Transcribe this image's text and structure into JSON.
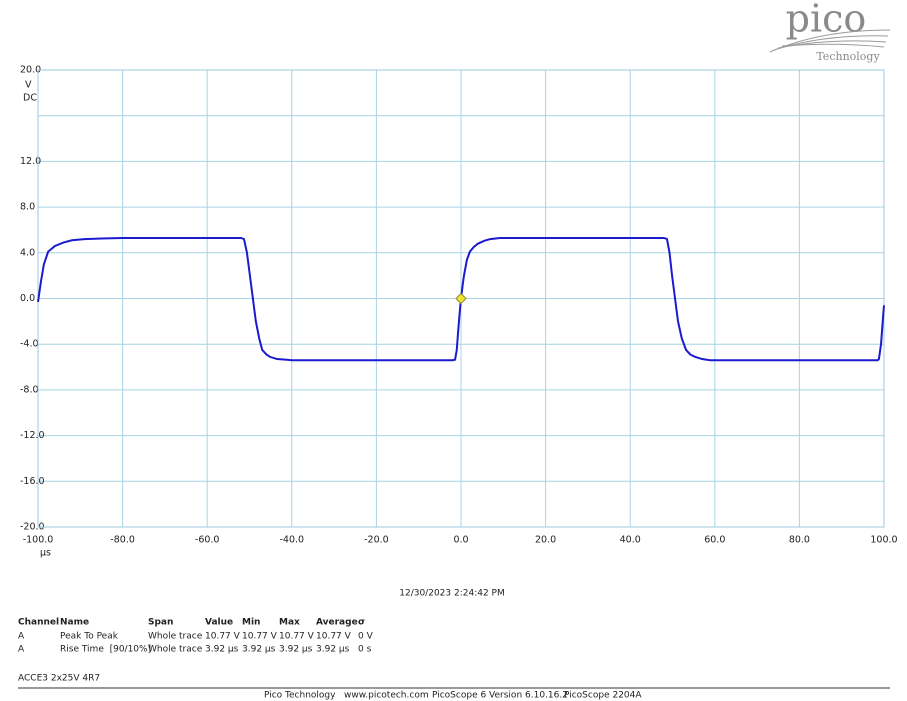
{
  "logo": {
    "name": "pico",
    "tagline": "Technology"
  },
  "chart_data": {
    "type": "line",
    "y_unit": "V",
    "y_coupling": "DC",
    "x_unit": "µs",
    "x": [
      -100,
      -99.3,
      -98.6,
      -97.6,
      -96,
      -94,
      -92,
      -89,
      -85,
      -80,
      -70,
      -60,
      -52,
      -51.3,
      -50.6,
      -49.9,
      -49.2,
      -48.5,
      -47.7,
      -47,
      -46,
      -45.2,
      -43.5,
      -41.5,
      -40,
      -30,
      -20,
      -10,
      -2,
      -1.4,
      -1,
      -0.7,
      -0.3,
      0,
      0.4,
      0.7,
      1.4,
      2.1,
      3,
      4,
      5.5,
      6.9,
      9.2,
      15,
      25,
      35,
      45,
      48,
      48.7,
      49.3,
      49.9,
      50.6,
      51.3,
      52.2,
      53.2,
      54.2,
      55.3,
      57,
      58.9,
      70,
      80,
      90,
      98.5,
      98.8,
      99.3,
      99.7,
      100
    ],
    "series": [
      {
        "name": "A",
        "color": "#1a1ad0",
        "values": [
          -0.3,
          1.5,
          3,
          4.1,
          4.6,
          4.9,
          5.1,
          5.2,
          5.25,
          5.3,
          5.3,
          5.3,
          5.3,
          5.2,
          4,
          2,
          0,
          -2,
          -3.5,
          -4.5,
          -4.9,
          -5.1,
          -5.3,
          -5.35,
          -5.4,
          -5.4,
          -5.4,
          -5.4,
          -5.4,
          -5.35,
          -4.5,
          -3,
          -1.2,
          0,
          1.2,
          2,
          3.4,
          4.1,
          4.5,
          4.8,
          5.05,
          5.2,
          5.3,
          5.3,
          5.3,
          5.3,
          5.3,
          5.3,
          5.2,
          4,
          2,
          0,
          -2,
          -3.5,
          -4.5,
          -4.9,
          -5.1,
          -5.3,
          -5.4,
          -5.4,
          -5.4,
          -5.4,
          -5.4,
          -5.3,
          -4,
          -2,
          -0.6
        ]
      }
    ],
    "trigger": {
      "x": 0,
      "y": 0,
      "color": "#f2e52a"
    },
    "xlim": [
      -100,
      100
    ],
    "xticks": [
      {
        "value": -100,
        "label": "-100.0"
      },
      {
        "value": -80,
        "label": "-80.0"
      },
      {
        "value": -60,
        "label": "-60.0"
      },
      {
        "value": -40,
        "label": "-40.0"
      },
      {
        "value": -20,
        "label": "-20.0"
      },
      {
        "value": 0,
        "label": "0.0"
      },
      {
        "value": 20,
        "label": "20.0"
      },
      {
        "value": 40,
        "label": "40.0"
      },
      {
        "value": 60,
        "label": "60.0"
      },
      {
        "value": 80,
        "label": "80.0"
      },
      {
        "value": 100,
        "label": "100.0"
      }
    ],
    "ylim": [
      -20,
      20
    ],
    "yticks": [
      {
        "value": 20,
        "label": "20.0"
      },
      {
        "value": 16,
        "label": null
      },
      {
        "value": 12,
        "label": "12.0"
      },
      {
        "value": 8,
        "label": "8.0"
      },
      {
        "value": 4,
        "label": "4.0"
      },
      {
        "value": 0,
        "label": "0.0"
      },
      {
        "value": -4,
        "label": "-4.0"
      },
      {
        "value": -8,
        "label": "-8.0"
      },
      {
        "value": -12,
        "label": "-12.0"
      },
      {
        "value": -16,
        "label": "-16.0"
      },
      {
        "value": -20,
        "label": "-20.0"
      }
    ],
    "grid": true
  },
  "timestamp": "12/30/2023 2:24:42 PM",
  "measurements": {
    "headers": [
      "Channel",
      "Name",
      "Span",
      "Value",
      "Min",
      "Max",
      "Average",
      "σ"
    ],
    "rows": [
      [
        "A",
        "Peak To Peak",
        "Whole trace",
        "10.77 V",
        "10.77 V",
        "10.77 V",
        "10.77 V",
        "0 V"
      ],
      [
        "A",
        "Rise Time  [90/10%]",
        "Whole trace",
        "3.92 µs",
        "3.92 µs",
        "3.92 µs",
        "3.92 µs",
        "0 s"
      ]
    ]
  },
  "probe": "ACCE3 2x25V 4R7",
  "footer": [
    "Pico Technology",
    "www.picotech.com",
    "PicoScope 6 Version 6.10.16.2",
    "PicoScope 2204A"
  ]
}
